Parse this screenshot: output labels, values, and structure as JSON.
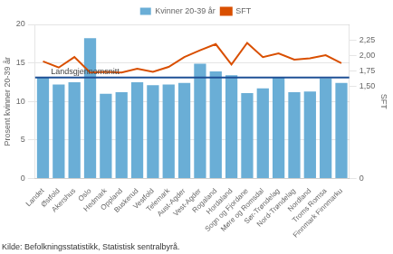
{
  "chart_data": {
    "type": "bar",
    "categories": [
      "Landet",
      "Østfold",
      "Akershus",
      "Oslo",
      "Hedmark",
      "Oppland",
      "Buskerud",
      "Vestfold",
      "Telemark",
      "Aust-Agder",
      "Vest-Agder",
      "Rogaland",
      "Hordaland",
      "Sogn og Fjordane",
      "Møre og Romsdal",
      "Sør-Trøndelag",
      "Nord-Trøndelag",
      "Nordland",
      "Troms Romsa",
      "Finnmark Finnmarku"
    ],
    "series": [
      {
        "name": "Kvinner 20-39 år",
        "type": "bar",
        "color": "#6aaed6",
        "values": [
          13.1,
          12.2,
          12.5,
          18.2,
          11.0,
          11.2,
          12.5,
          12.1,
          12.2,
          12.4,
          14.9,
          13.9,
          13.4,
          11.1,
          11.7,
          13.1,
          11.2,
          11.3,
          13.0,
          12.4
        ]
      },
      {
        "name": "SFT",
        "type": "line",
        "color": "#d94f00",
        "axis": "y2",
        "values": [
          1.9,
          1.8,
          1.97,
          1.72,
          1.73,
          1.72,
          1.78,
          1.73,
          1.81,
          1.97,
          2.08,
          2.18,
          1.85,
          2.2,
          1.97,
          2.03,
          1.93,
          1.95,
          2.0,
          1.87
        ]
      }
    ],
    "y_label": "Prosent kvinner 20-39 år",
    "y2_label": "SFT",
    "ylim": [
      0,
      20
    ],
    "yticks": [
      0,
      5,
      10,
      15,
      20
    ],
    "y2lim": [
      0,
      2.5
    ],
    "y2ticks": [
      0,
      {
        "value": 1.5,
        "label": "1,50"
      },
      {
        "value": 1.75,
        "label": "1,75"
      },
      {
        "value": 2.0,
        "label": "2,00"
      },
      {
        "value": 2.25,
        "label": "2,25"
      }
    ],
    "annotations": [
      {
        "type": "hline",
        "y": 13.1,
        "label": "Landsgjennomsnitt",
        "color": "#1f5096"
      }
    ],
    "source": "Kilde: Befolkningsstatistikk, Statistisk sentralbyrå.",
    "grid": true,
    "legend": "top"
  }
}
